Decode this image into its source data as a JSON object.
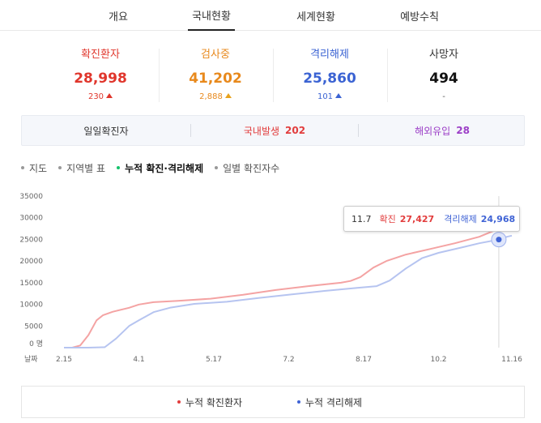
{
  "tabs": [
    {
      "label": "개요"
    },
    {
      "label": "국내현황",
      "active": true
    },
    {
      "label": "세계현황"
    },
    {
      "label": "예방수칙"
    }
  ],
  "stats": [
    {
      "label": "확진환자",
      "value": "28,998",
      "change": "230",
      "direction": "up",
      "color": "#e0362c"
    },
    {
      "label": "검사중",
      "value": "41,202",
      "change": "2,888",
      "direction": "up",
      "color": "#e8891c"
    },
    {
      "label": "격리해제",
      "value": "25,860",
      "change": "101",
      "direction": "up",
      "color": "#3b63d3"
    },
    {
      "label": "사망자",
      "value": "494",
      "change": "-",
      "direction": "none",
      "color": "#111111"
    }
  ],
  "daily": {
    "label": "일일확진자",
    "domestic_label": "국내발생",
    "domestic_value": "202",
    "overseas_label": "해외유입",
    "overseas_value": "28"
  },
  "filters": [
    {
      "label": "지도"
    },
    {
      "label": "지역별 표"
    },
    {
      "label": "누적 확진·격리해제",
      "active": true
    },
    {
      "label": "일별 확진자수"
    }
  ],
  "chart_data": {
    "type": "line",
    "y_unit_label": "0 명",
    "x_axis_label": "날짜",
    "y_ticks": [
      35000,
      30000,
      25000,
      20000,
      15000,
      10000,
      5000
    ],
    "x_ticks": [
      "2.15",
      "4.1",
      "5.17",
      "7.2",
      "8.17",
      "10.2",
      "11.16"
    ],
    "ylim": [
      0,
      35000
    ],
    "x_day_range": [
      0,
      275
    ],
    "x_tick_days": [
      0,
      46,
      92,
      138,
      184,
      230,
      275
    ],
    "series": [
      {
        "name": "누적 확진환자",
        "color": "#f4a3a3",
        "points": [
          [
            0,
            0
          ],
          [
            5,
            0
          ],
          [
            10,
            500
          ],
          [
            15,
            2900
          ],
          [
            20,
            6300
          ],
          [
            24,
            7500
          ],
          [
            30,
            8300
          ],
          [
            40,
            9200
          ],
          [
            46,
            9950
          ],
          [
            55,
            10500
          ],
          [
            70,
            10800
          ],
          [
            90,
            11300
          ],
          [
            110,
            12200
          ],
          [
            130,
            13300
          ],
          [
            150,
            14200
          ],
          [
            170,
            15000
          ],
          [
            176,
            15400
          ],
          [
            182,
            16300
          ],
          [
            190,
            18500
          ],
          [
            198,
            20000
          ],
          [
            210,
            21500
          ],
          [
            225,
            22800
          ],
          [
            240,
            24100
          ],
          [
            255,
            25600
          ],
          [
            264,
            27000
          ],
          [
            267,
            27427
          ],
          [
            272,
            28500
          ],
          [
            275,
            28998
          ]
        ]
      },
      {
        "name": "누적 격리해제",
        "color": "#b6c4f0",
        "points": [
          [
            0,
            0
          ],
          [
            15,
            0
          ],
          [
            25,
            100
          ],
          [
            32,
            2100
          ],
          [
            40,
            5000
          ],
          [
            46,
            6300
          ],
          [
            55,
            8200
          ],
          [
            65,
            9200
          ],
          [
            80,
            10100
          ],
          [
            100,
            10600
          ],
          [
            120,
            11500
          ],
          [
            140,
            12300
          ],
          [
            160,
            13100
          ],
          [
            180,
            13800
          ],
          [
            192,
            14200
          ],
          [
            200,
            15500
          ],
          [
            210,
            18300
          ],
          [
            220,
            20700
          ],
          [
            230,
            21900
          ],
          [
            245,
            23200
          ],
          [
            255,
            24100
          ],
          [
            267,
            24968
          ],
          [
            272,
            25600
          ],
          [
            275,
            25860
          ]
        ]
      }
    ],
    "highlight": {
      "day": 267,
      "date": "11.7",
      "confirmed_label": "확진",
      "confirmed_value": "27,427",
      "released_label": "격리해제",
      "released_value": "24,968"
    }
  },
  "legend": [
    {
      "label": "누적 확진환자",
      "color": "#e23d3d"
    },
    {
      "label": "누적 격리해제",
      "color": "#3f63d5"
    }
  ]
}
